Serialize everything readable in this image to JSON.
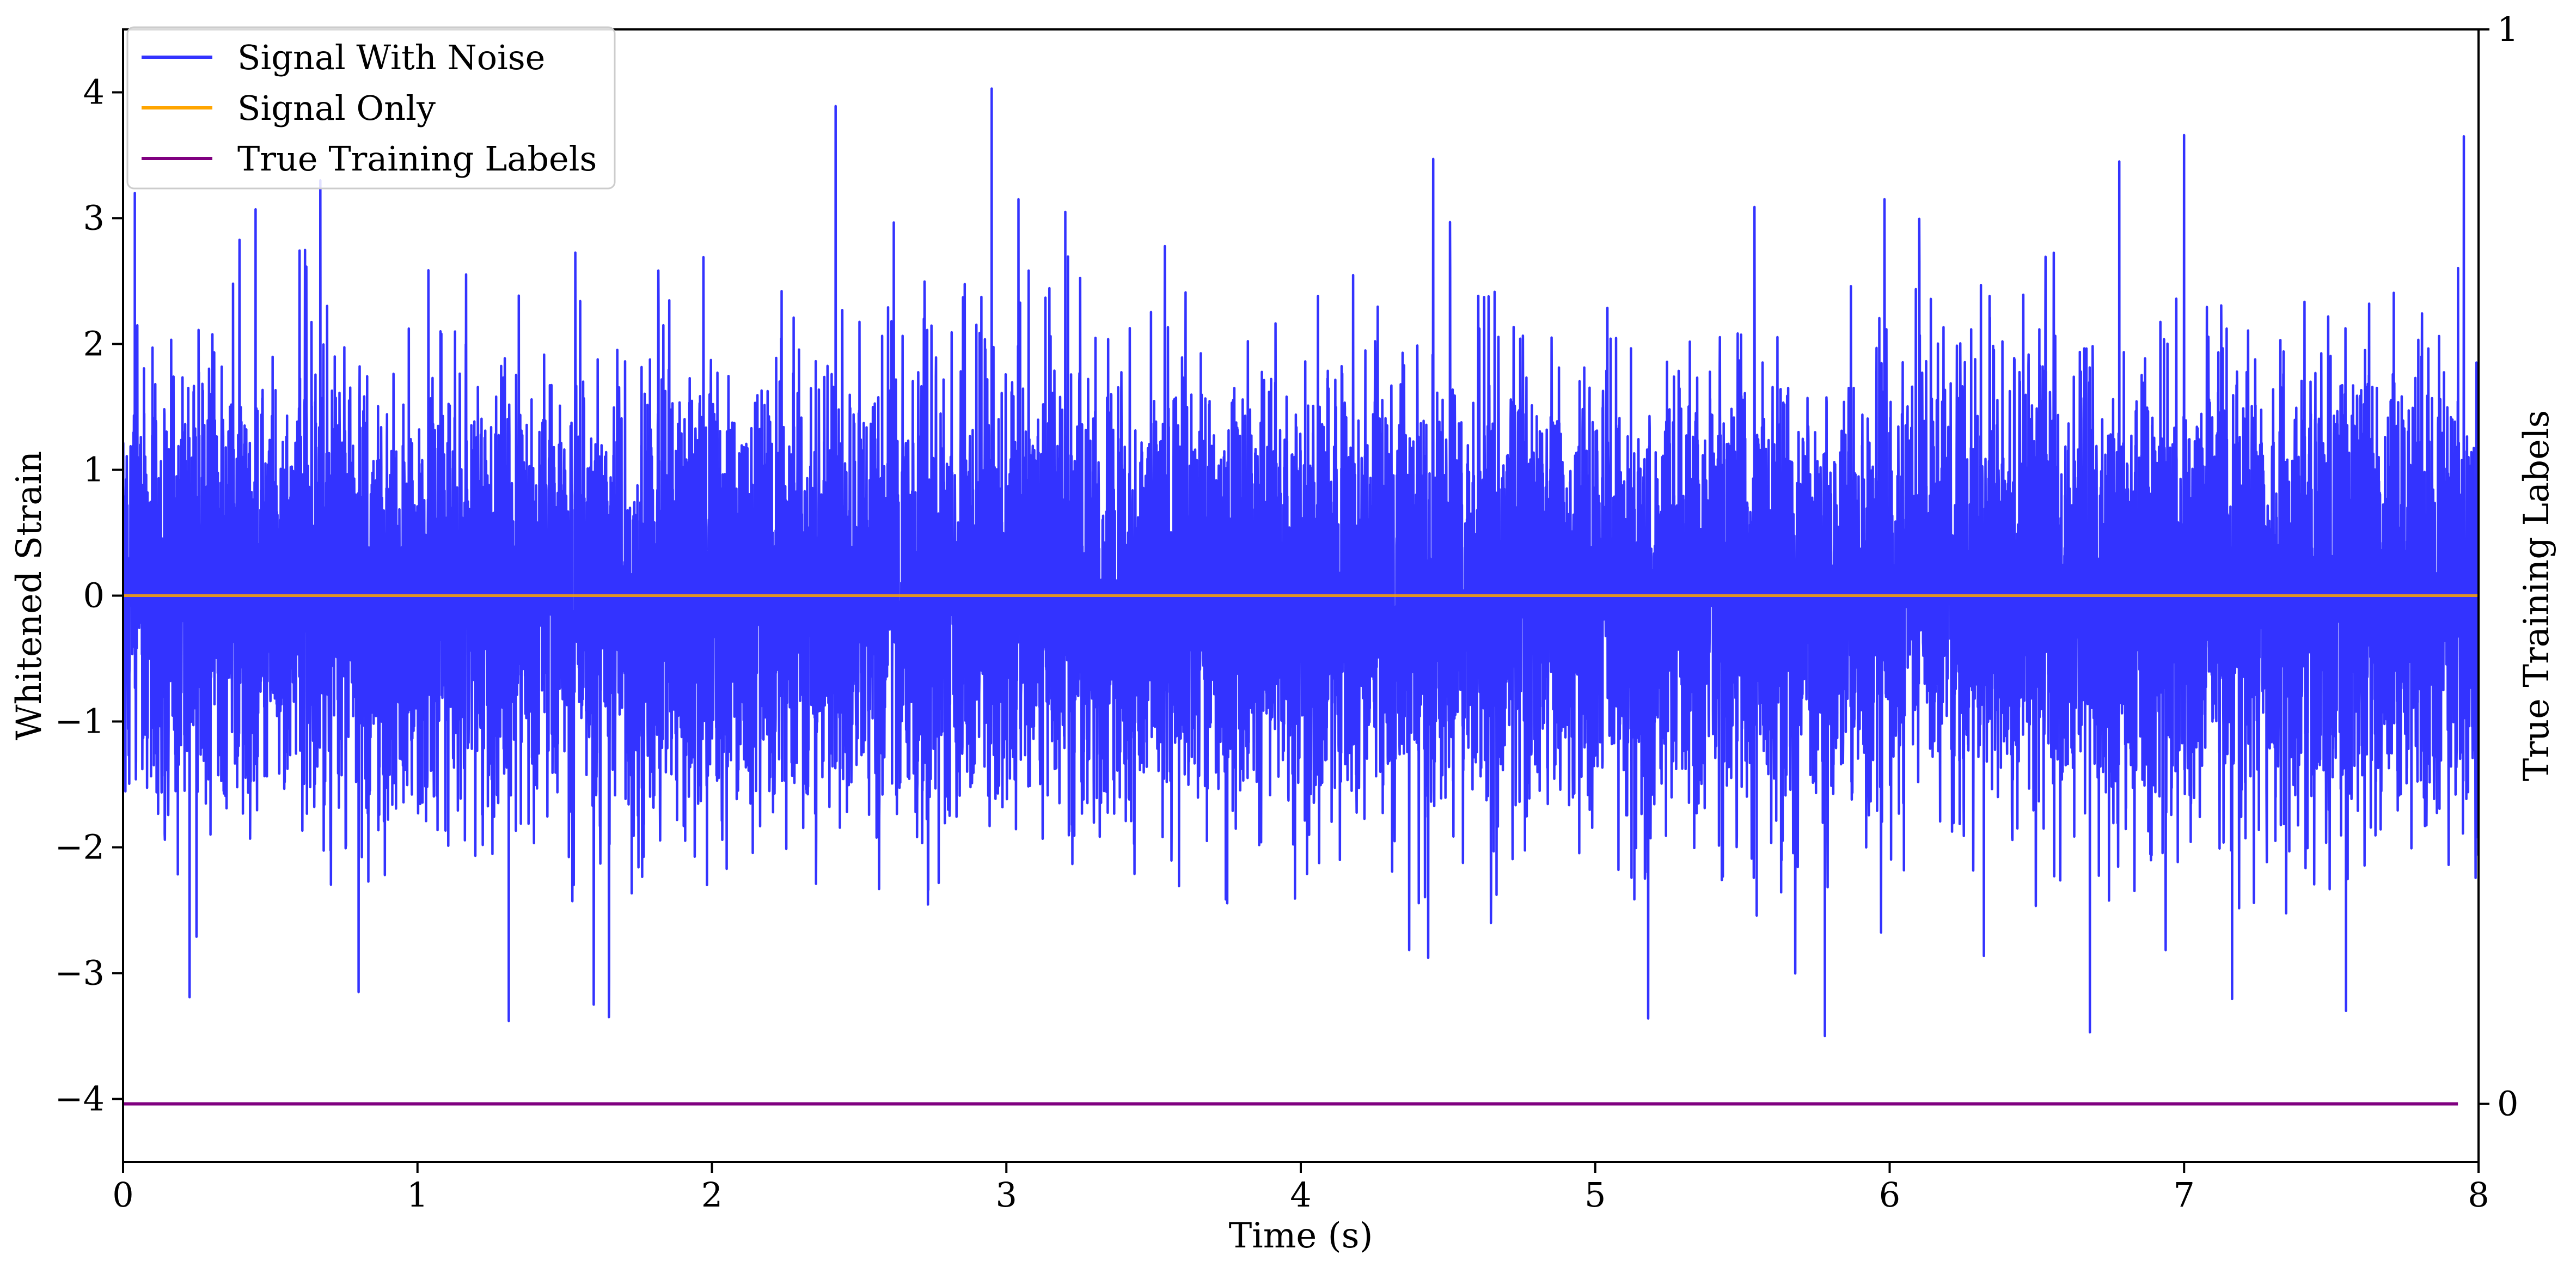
{
  "chart_data": {
    "type": "line",
    "title": "",
    "xlabel": "Time (s)",
    "ylabel": "Whitened Strain",
    "y2label": "True Training Labels",
    "xlim": [
      0,
      8.0
    ],
    "ylim": [
      -4.5,
      4.5
    ],
    "y2lim": [
      -0.054,
      1.0
    ],
    "xticks": [
      0,
      1,
      2,
      3,
      4,
      5,
      6,
      7,
      8
    ],
    "xtick_labels": [
      "0",
      "1",
      "2",
      "3",
      "4",
      "5",
      "6",
      "7",
      "8"
    ],
    "yticks": [
      -4,
      -3,
      -2,
      -1,
      0,
      1,
      2,
      3,
      4
    ],
    "ytick_labels": [
      "−4",
      "−3",
      "−2",
      "−1",
      "0",
      "1",
      "2",
      "3",
      "4"
    ],
    "y2ticks": [
      0,
      1
    ],
    "y2tick_labels": [
      "0",
      "1"
    ],
    "grid": false,
    "legend_position": "top-left",
    "series": [
      {
        "name": "Signal With Noise",
        "color": "#3333ff",
        "axis": "left",
        "description_stats": {
          "mean": 0,
          "std": 0.95,
          "min": -3.5,
          "max": 4.03
        },
        "notable_peaks": [
          {
            "x": 0.04,
            "y": 3.2
          },
          {
            "x": 0.45,
            "y": 3.07
          },
          {
            "x": 0.67,
            "y": 3.3
          },
          {
            "x": 2.42,
            "y": 3.89
          },
          {
            "x": 2.95,
            "y": 4.03
          },
          {
            "x": 3.2,
            "y": 3.05
          },
          {
            "x": 4.45,
            "y": 3.47
          },
          {
            "x": 6.78,
            "y": 3.45
          },
          {
            "x": 7.0,
            "y": 3.66
          },
          {
            "x": 7.95,
            "y": 3.65
          },
          {
            "x": 1.31,
            "y": -3.38
          },
          {
            "x": 1.65,
            "y": -3.35
          },
          {
            "x": 5.18,
            "y": -3.36
          },
          {
            "x": 5.78,
            "y": -3.5
          },
          {
            "x": 6.68,
            "y": -3.47
          },
          {
            "x": 0.8,
            "y": -3.15
          },
          {
            "x": 7.55,
            "y": -3.3
          }
        ]
      },
      {
        "name": "Signal Only",
        "color": "#ffa500",
        "axis": "left",
        "x": [
          0,
          8.0
        ],
        "y": [
          0,
          0
        ]
      },
      {
        "name": "True Training Labels",
        "color": "#800080",
        "axis": "right",
        "x": [
          0,
          7.93
        ],
        "y": [
          0,
          0
        ]
      }
    ]
  }
}
